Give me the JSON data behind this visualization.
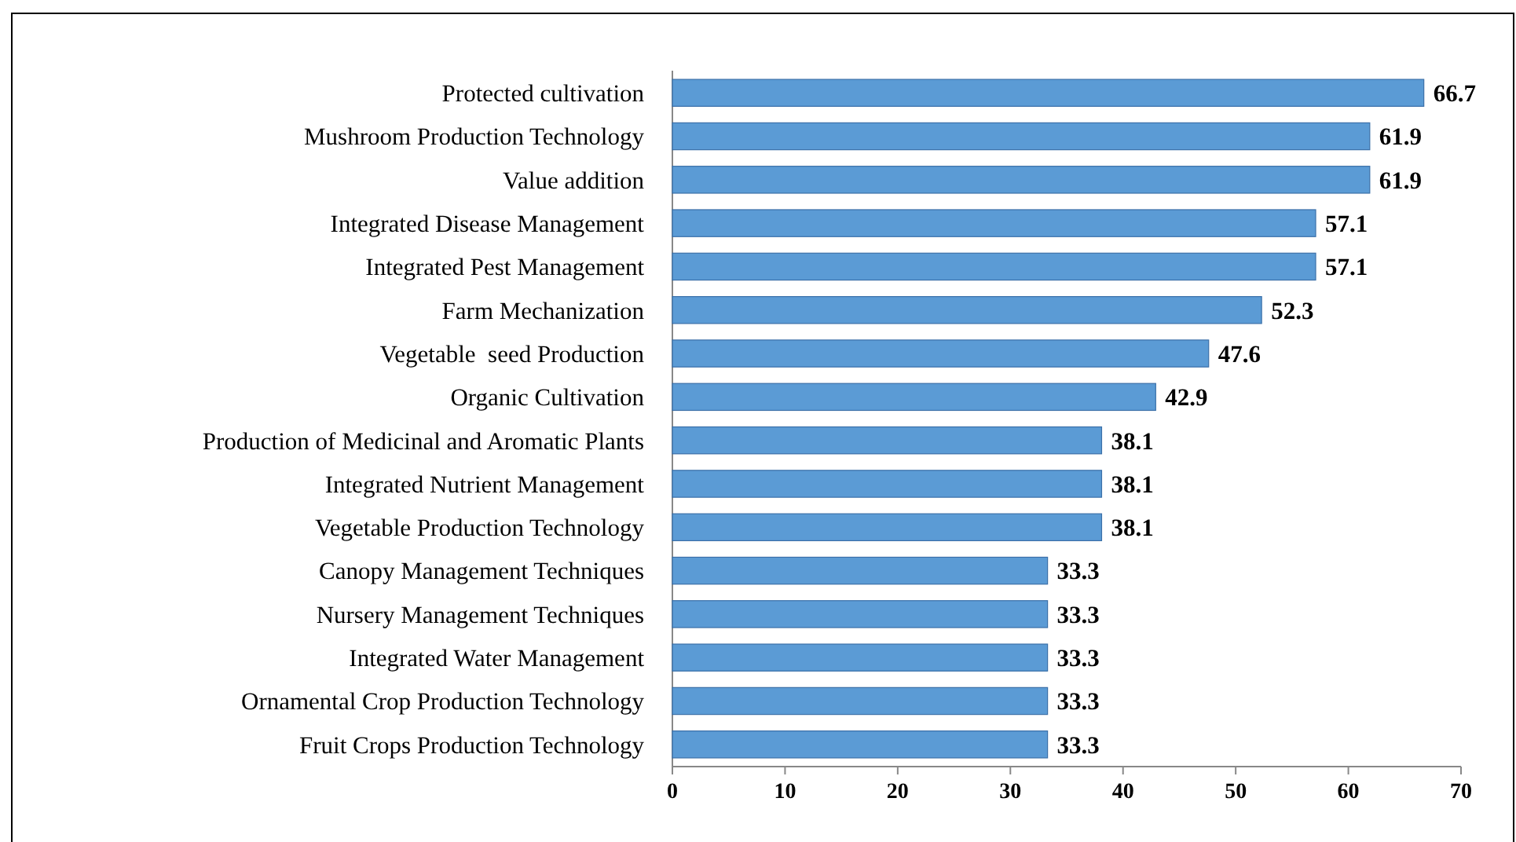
{
  "chart_data": {
    "type": "bar",
    "orientation": "horizontal",
    "categories": [
      "Protected cultivation",
      "Mushroom Production Technology",
      "Value addition",
      "Integrated Disease Management",
      "Integrated Pest Management",
      "Farm Mechanization",
      "Vegetable  seed Production",
      "Organic Cultivation",
      "Production of Medicinal and Aromatic Plants",
      "Integrated Nutrient Management",
      "Vegetable Production Technology",
      "Canopy Management Techniques",
      "Nursery Management Techniques",
      "Integrated Water Management",
      "Ornamental Crop Production Technology",
      "Fruit Crops Production Technology"
    ],
    "values": [
      66.7,
      61.9,
      61.9,
      57.1,
      57.1,
      52.3,
      47.6,
      42.9,
      38.1,
      38.1,
      38.1,
      33.3,
      33.3,
      33.3,
      33.3,
      33.3
    ],
    "color": "#5b9bd5",
    "data_labels": true,
    "xlim": [
      0,
      70
    ],
    "xticks": [
      0,
      10,
      20,
      30,
      40,
      50,
      60,
      70
    ],
    "grid": false
  }
}
